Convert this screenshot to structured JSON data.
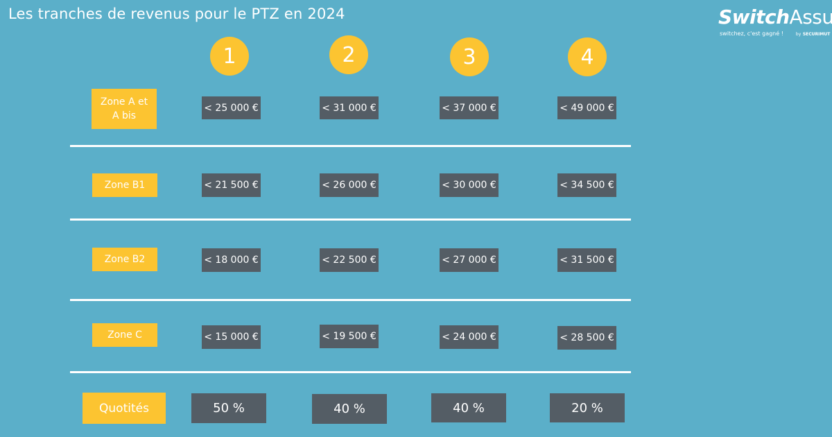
{
  "title": "Les tranches de revenus pour le PTZ en 2024",
  "logo": {
    "part1": "Switch",
    "part2": "Assur",
    "tagline": "switchez, c'est gagné !",
    "by": "by",
    "brand": "SECURIMUT"
  },
  "tranches": [
    "1",
    "2",
    "3",
    "4"
  ],
  "rows": [
    {
      "zone": "Zone A et A bis",
      "values": [
        "< 25 000 €",
        "< 31 000 €",
        "< 37 000 €",
        "< 49 000 €"
      ]
    },
    {
      "zone": "Zone B1",
      "values": [
        "< 21 500 €",
        "< 26 000 €",
        "< 30 000 €",
        "< 34 500 €"
      ]
    },
    {
      "zone": "Zone B2",
      "values": [
        "< 18 000 €",
        "< 22 500 €",
        "< 27 000 €",
        "< 31 500 €"
      ]
    },
    {
      "zone": "Zone C",
      "values": [
        "< 15 000 €",
        "< 19 500 €",
        "< 24 000 €",
        "< 28 500 €"
      ]
    }
  ],
  "quotites": {
    "label": "Quotités",
    "values": [
      "50 %",
      "40 %",
      "40 %",
      "20 %"
    ]
  },
  "colors": {
    "background": "#5bafc9",
    "accent": "#fcc431",
    "cell": "#545d65"
  }
}
